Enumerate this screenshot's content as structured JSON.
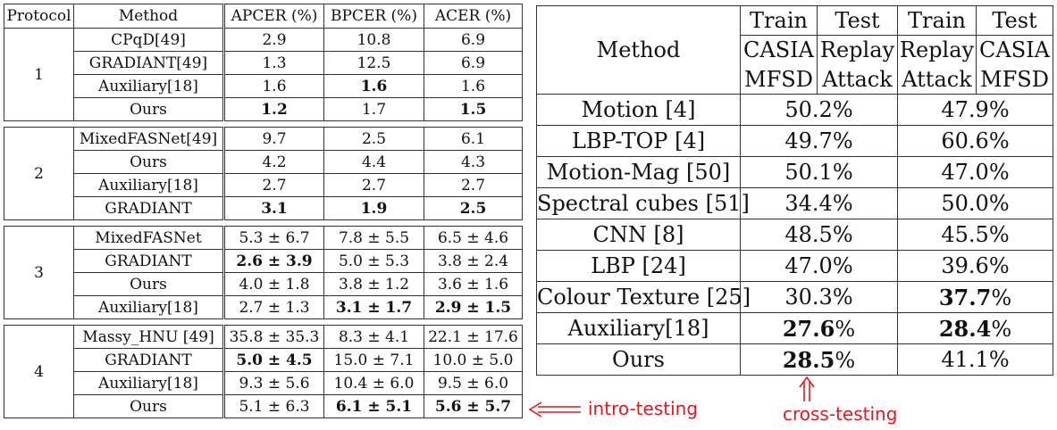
{
  "left_table": {
    "headers": [
      "Protocol",
      "Method",
      "APCER (%)",
      "BPCER (%)",
      "ACER (%)"
    ],
    "groups": [
      {
        "protocol": "1",
        "rows": [
          {
            "method": "CPqD[49]",
            "apcer": "2.9",
            "bpcer": "10.8",
            "acer": "6.9",
            "bold": []
          },
          {
            "method": "GRADIANT[49]",
            "apcer": "1.3",
            "bpcer": "12.5",
            "acer": "6.9",
            "bold": []
          },
          {
            "method": "Auxiliary[18]",
            "apcer": "1.6",
            "bpcer": "1.6",
            "acer": "1.6",
            "bold": [
              "bpcer"
            ]
          },
          {
            "method": "Ours",
            "apcer": "1.2",
            "bpcer": "1.7",
            "acer": "1.5",
            "bold": [
              "apcer",
              "acer"
            ]
          }
        ]
      },
      {
        "protocol": "2",
        "rows": [
          {
            "method": "MixedFASNet[49]",
            "apcer": "9.7",
            "bpcer": "2.5",
            "acer": "6.1",
            "bold": []
          },
          {
            "method": "Ours",
            "apcer": "4.2",
            "bpcer": "4.4",
            "acer": "4.3",
            "bold": []
          },
          {
            "method": "Auxiliary[18]",
            "apcer": "2.7",
            "bpcer": "2.7",
            "acer": "2.7",
            "bold": []
          },
          {
            "method": "GRADIANT",
            "apcer": "3.1",
            "bpcer": "1.9",
            "acer": "2.5",
            "bold": [
              "apcer",
              "bpcer",
              "acer"
            ]
          }
        ]
      },
      {
        "protocol": "3",
        "rows": [
          {
            "method": "MixedFASNet",
            "apcer": "5.3 ± 6.7",
            "bpcer": "7.8 ± 5.5",
            "acer": "6.5 ± 4.6",
            "bold": []
          },
          {
            "method": "GRADIANT",
            "apcer": "2.6 ± 3.9",
            "bpcer": "5.0 ± 5.3",
            "acer": "3.8 ± 2.4",
            "bold": [
              "apcer"
            ]
          },
          {
            "method": "Ours",
            "apcer": "4.0 ± 1.8",
            "bpcer": "3.8 ± 1.2",
            "acer": "3.6 ± 1.6",
            "bold": []
          },
          {
            "method": "Auxiliary[18]",
            "apcer": "2.7 ± 1.3",
            "bpcer": "3.1 ± 1.7",
            "acer": "2.9 ± 1.5",
            "bold": [
              "bpcer",
              "acer"
            ]
          }
        ]
      },
      {
        "protocol": "4",
        "rows": [
          {
            "method": "Massy_HNU [49]",
            "apcer": "35.8 ± 35.3",
            "bpcer": "8.3 ± 4.1",
            "acer": "22.1 ± 17.6",
            "bold": []
          },
          {
            "method": "GRADIANT",
            "apcer": "5.0 ± 4.5",
            "bpcer": "15.0 ± 7.1",
            "acer": "10.0 ± 5.0",
            "bold": [
              "apcer"
            ]
          },
          {
            "method": "Auxiliary[18]",
            "apcer": "9.3 ± 5.6",
            "bpcer": "10.4 ± 6.0",
            "acer": "9.5 ± 6.0",
            "bold": []
          },
          {
            "method": "Ours",
            "apcer": "5.1 ± 6.3",
            "bpcer": "6.1 ± 5.1",
            "acer": "5.6 ± 5.7",
            "bold": [
              "bpcer",
              "acer"
            ]
          }
        ]
      }
    ]
  },
  "right_table": {
    "method_header": "Method",
    "train": "Train",
    "test": "Test",
    "casia": "CASIA",
    "mfsd": "MFSD",
    "replay": "Replay",
    "attack": "Attack",
    "rows": [
      {
        "method": "Motion [4]",
        "a": "50.2",
        "b": "47.9",
        "bold": []
      },
      {
        "method": "LBP-TOP [4]",
        "a": "49.7",
        "b": "60.6",
        "bold": []
      },
      {
        "method": "Motion-Mag [50]",
        "a": "50.1",
        "b": "47.0",
        "bold": []
      },
      {
        "method": "Spectral cubes [51]",
        "a": "34.4",
        "b": "50.0",
        "bold": []
      },
      {
        "method": "CNN [8]",
        "a": "48.5",
        "b": "45.5",
        "bold": []
      },
      {
        "method": "LBP [24]",
        "a": "47.0",
        "b": "39.6",
        "bold": []
      },
      {
        "method": "Colour Texture [25]",
        "a": "30.3",
        "b": "37.7",
        "bold": [
          "b"
        ]
      },
      {
        "method": "Auxiliary[18]",
        "a": "27.6",
        "b": "28.4",
        "bold": [
          "a",
          "b"
        ]
      },
      {
        "method": "Ours",
        "a": "28.5",
        "b": "41.1",
        "bold": [
          "a"
        ]
      }
    ],
    "percent": "%"
  },
  "annotations": {
    "intro": "intro-testing",
    "cross": "cross-testing",
    "color": "#e8151e"
  }
}
